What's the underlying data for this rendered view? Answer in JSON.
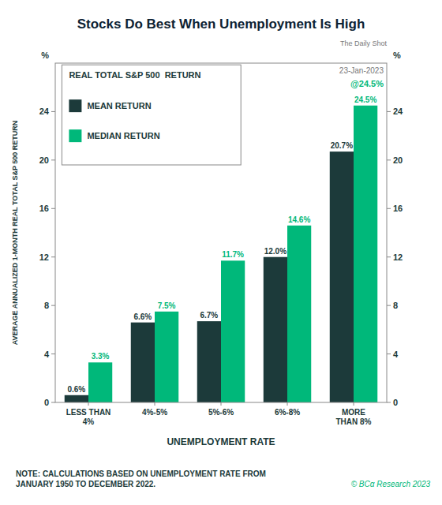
{
  "chart_data": {
    "type": "bar",
    "title": "Stocks Do Best When Unemployment Is High",
    "subtitle": "REAL TOTAL S&P 500  RETURN",
    "source": "The Daily Shot",
    "date": "23-Jan-2023",
    "annotations": [
      "@24.5%"
    ],
    "copyright": "© BCα Research 2023",
    "note": "NOTE: CALCULATIONS BASED ON UNEMPLOYMENT RATE FROM\nJANUARY 1950 TO DECEMBER 2022.",
    "categories": [
      "LESS THAN\n4%",
      "4%-5%",
      "5%-6%",
      "6%-8%",
      "MORE\nTHAN 8%"
    ],
    "series": [
      {
        "name": "MEAN RETURN",
        "color": "#1c3a3a",
        "values": [
          0.6,
          6.6,
          6.7,
          12.0,
          20.7
        ],
        "value_labels": [
          "0.6%",
          "6.6%",
          "6.7%",
          "12.0%",
          "20.7%"
        ]
      },
      {
        "name": "MEDIAN RETURN",
        "color": "#00b87a",
        "values": [
          3.3,
          7.5,
          11.7,
          14.6,
          24.5
        ],
        "value_labels": [
          "3.3%",
          "7.5%",
          "11.7%",
          "14.6%",
          "24.5%"
        ]
      }
    ],
    "xlabel": "UNEMPLOYMENT RATE",
    "ylabel": "AVERAGE ANNUALIZED 1-MONTH REAL TOTAL S&P 500 RETURN",
    "y_unit": "%",
    "y2_unit": "%",
    "ylim": [
      0,
      28
    ],
    "yticks": [
      0,
      4,
      8,
      12,
      16,
      20,
      24
    ],
    "y2lim": [
      0,
      28
    ],
    "y2ticks": [
      0,
      4,
      8,
      12,
      16,
      20,
      24
    ],
    "grid": false,
    "legend": "upper left",
    "data_labels": true
  }
}
